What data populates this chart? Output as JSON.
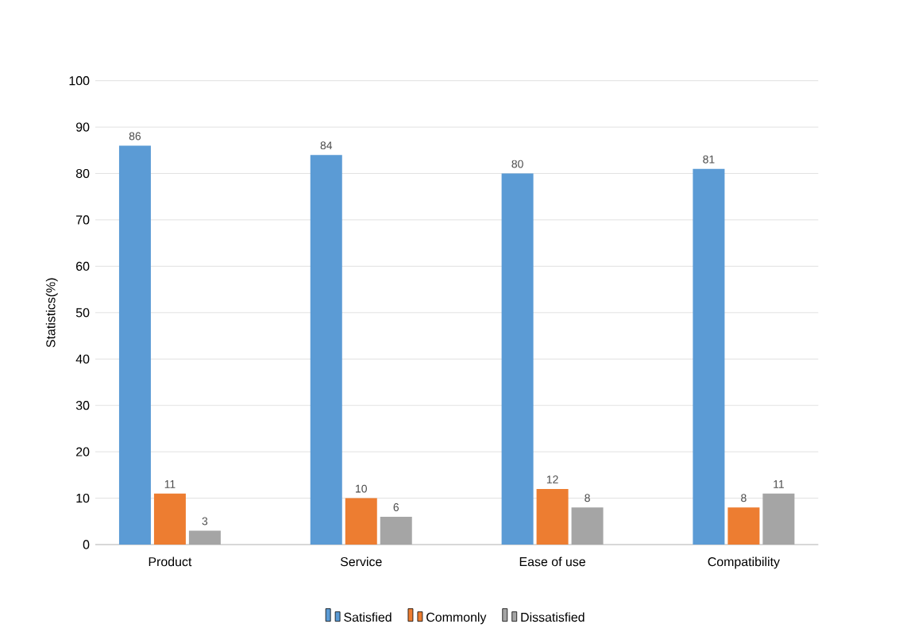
{
  "chart_data": {
    "type": "bar",
    "ylabel": "Statistics(%)",
    "categories": [
      "Product",
      "Service",
      "Ease of use",
      "Compatibility"
    ],
    "series": [
      {
        "name": "Satisfied",
        "color": "#5b9bd5",
        "values": [
          86,
          84,
          80,
          81
        ]
      },
      {
        "name": "Commonly",
        "color": "#ed7d31",
        "values": [
          11,
          10,
          12,
          8
        ]
      },
      {
        "name": "Dissatisfied",
        "color": "#a5a5a5",
        "values": [
          3,
          6,
          8,
          11
        ]
      }
    ],
    "ylim": [
      0,
      100
    ],
    "yticks": [
      0,
      10,
      20,
      30,
      40,
      50,
      60,
      70,
      80,
      90,
      100
    ],
    "grid": "y",
    "legend": "bottom",
    "data_labels": true
  }
}
